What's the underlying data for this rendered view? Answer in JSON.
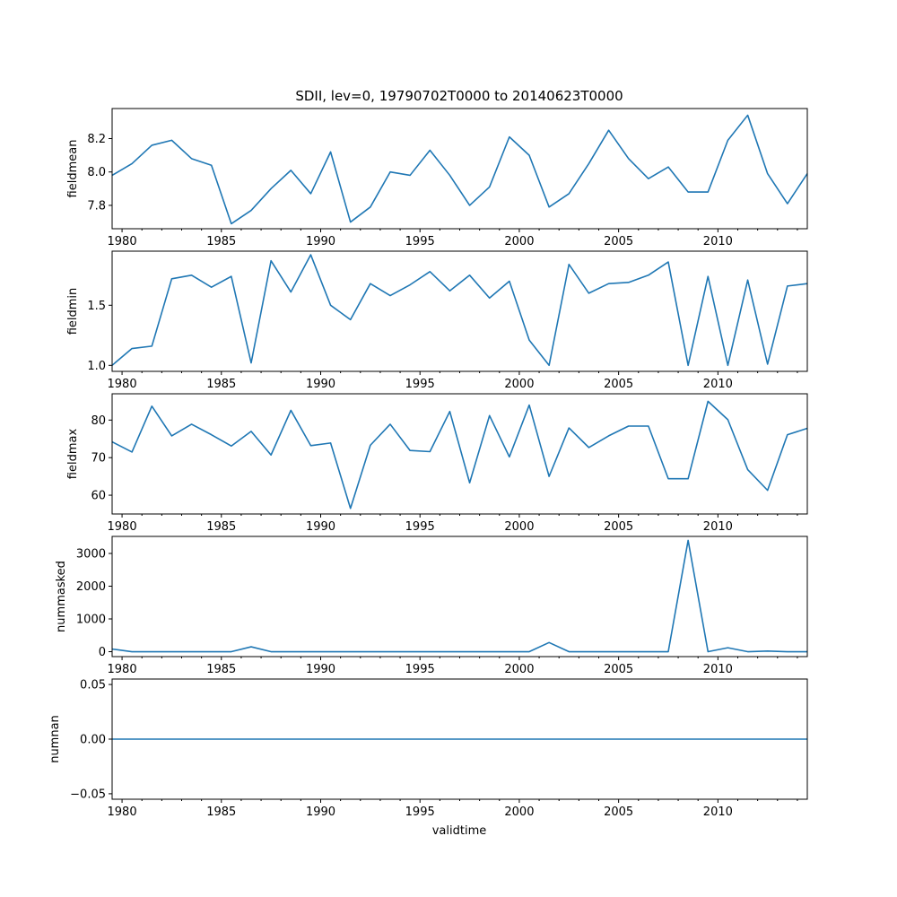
{
  "chart_data": {
    "type": "line",
    "title": "SDII, lev=0, 19790702T0000 to 20140623T0000",
    "xlabel": "validtime",
    "x": [
      1979.5,
      1980.5,
      1981.5,
      1982.5,
      1983.5,
      1984.5,
      1985.5,
      1986.5,
      1987.5,
      1988.5,
      1989.5,
      1990.5,
      1991.5,
      1992.5,
      1993.5,
      1994.5,
      1995.5,
      1996.5,
      1997.5,
      1998.5,
      1999.5,
      2000.5,
      2001.5,
      2002.5,
      2003.5,
      2004.5,
      2005.5,
      2006.5,
      2007.5,
      2008.5,
      2009.5,
      2010.5,
      2011.5,
      2012.5,
      2013.5,
      2014.5
    ],
    "xlim": [
      1979.5,
      2014.5
    ],
    "xticks": [
      1980,
      1985,
      1990,
      1995,
      2000,
      2005,
      2010
    ],
    "grid": false,
    "panels": [
      {
        "ylabel": "fieldmean",
        "ylim": [
          7.66,
          8.38
        ],
        "yticks": [
          7.8,
          8.0,
          8.2
        ],
        "ytick_labels": [
          "7.8",
          "8.0",
          "8.2"
        ],
        "values": [
          7.98,
          8.05,
          8.16,
          8.19,
          8.08,
          8.04,
          7.69,
          7.77,
          7.9,
          8.01,
          7.87,
          8.12,
          7.7,
          7.79,
          8.0,
          7.98,
          8.13,
          7.98,
          7.8,
          7.91,
          8.21,
          8.1,
          7.79,
          7.87,
          8.05,
          8.25,
          8.08,
          7.96,
          8.03,
          7.88,
          7.88,
          8.19,
          8.34,
          7.99,
          7.81,
          7.99
        ]
      },
      {
        "ylabel": "fieldmin",
        "ylim": [
          0.95,
          1.95
        ],
        "yticks": [
          1.0,
          1.5
        ],
        "ytick_labels": [
          "1.0",
          "1.5"
        ],
        "values": [
          1.0,
          1.14,
          1.16,
          1.72,
          1.75,
          1.65,
          1.74,
          1.02,
          1.87,
          1.61,
          1.92,
          1.5,
          1.38,
          1.68,
          1.58,
          1.67,
          1.78,
          1.62,
          1.75,
          1.56,
          1.7,
          1.21,
          1.0,
          1.84,
          1.6,
          1.68,
          1.69,
          1.75,
          1.86,
          1.0,
          1.74,
          1.0,
          1.71,
          1.01,
          1.66,
          1.68
        ]
      },
      {
        "ylabel": "fieldmax",
        "ylim": [
          55,
          87
        ],
        "yticks": [
          60,
          70,
          80
        ],
        "ytick_labels": [
          "60",
          "70",
          "80"
        ],
        "values": [
          74.2,
          71.5,
          83.7,
          75.8,
          78.9,
          76.1,
          73.1,
          77.0,
          70.7,
          82.6,
          73.2,
          73.9,
          56.5,
          73.3,
          78.9,
          71.9,
          71.6,
          82.3,
          63.3,
          81.2,
          70.2,
          84.0,
          65.0,
          77.9,
          72.7,
          75.8,
          78.4,
          78.4,
          64.4,
          64.4,
          85.0,
          80.1,
          66.8,
          61.3,
          76.1,
          77.8
        ]
      },
      {
        "ylabel": "nummasked",
        "ylim": [
          -150,
          3520
        ],
        "yticks": [
          0,
          1000,
          2000,
          3000
        ],
        "ytick_labels": [
          "0",
          "1000",
          "2000",
          "3000"
        ],
        "values": [
          80,
          0,
          0,
          0,
          0,
          0,
          0,
          150,
          0,
          0,
          0,
          0,
          0,
          0,
          0,
          0,
          0,
          0,
          0,
          0,
          0,
          0,
          280,
          0,
          0,
          0,
          0,
          0,
          0,
          3400,
          0,
          120,
          0,
          20,
          0,
          0
        ]
      },
      {
        "ylabel": "numnan",
        "ylim": [
          -0.055,
          0.055
        ],
        "yticks": [
          -0.05,
          0.0,
          0.05
        ],
        "ytick_labels": [
          "−0.05",
          "0.00",
          "0.05"
        ],
        "values": [
          0,
          0,
          0,
          0,
          0,
          0,
          0,
          0,
          0,
          0,
          0,
          0,
          0,
          0,
          0,
          0,
          0,
          0,
          0,
          0,
          0,
          0,
          0,
          0,
          0,
          0,
          0,
          0,
          0,
          0,
          0,
          0,
          0,
          0,
          0,
          0
        ]
      }
    ]
  }
}
